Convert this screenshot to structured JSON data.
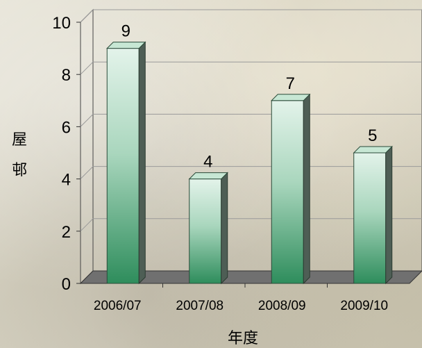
{
  "chart_data": {
    "type": "bar",
    "categories": [
      "2006/07",
      "2007/08",
      "2008/09",
      "2009/10"
    ],
    "values": [
      9,
      4,
      7,
      5
    ],
    "ylim": [
      0,
      10
    ],
    "yticks": [
      0,
      2,
      4,
      6,
      8,
      10
    ],
    "xlabel": "年度",
    "ylabel": "屋邨",
    "grid": true,
    "style": "3d-column",
    "colors": {
      "bar_top": "#e3f3ea",
      "bar_bottom": "#2e8d5c",
      "bar_side": "#4e5e55",
      "bar_cap": "#c7e7d4",
      "floor": "#707070",
      "grid": "#9a9a9a"
    }
  }
}
